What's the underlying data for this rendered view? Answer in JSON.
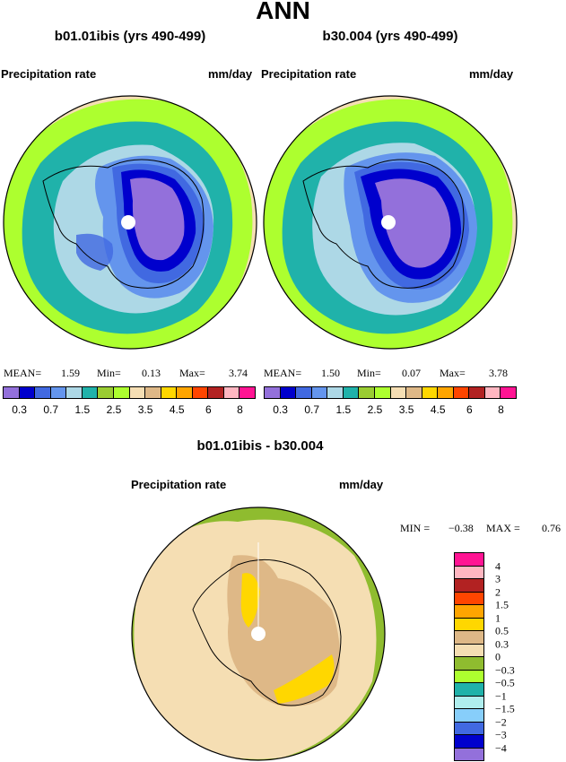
{
  "header": {
    "title": "ANN"
  },
  "panels": [
    {
      "run_label": "b01.01ibis (yrs 490-499)",
      "variable": "Precipitation rate",
      "units": "mm/day",
      "stats": {
        "mean_label": "MEAN=",
        "mean": "1.59",
        "min_label": "Min=",
        "min": "0.13",
        "max_label": "Max=",
        "max": "3.74"
      }
    },
    {
      "run_label": "b30.004 (yrs 490-499)",
      "variable": "Precipitation rate",
      "units": "mm/day",
      "stats": {
        "mean_label": "MEAN=",
        "mean": "1.50",
        "min_label": "Min=",
        "min": "0.07",
        "max_label": "Max=",
        "max": "3.78"
      }
    }
  ],
  "diff_panel": {
    "title": "b01.01ibis - b30.004",
    "variable": "Precipitation rate",
    "units": "mm/day",
    "min_label": "MIN =",
    "min": "−0.38",
    "max_label": "MAX =",
    "max": "0.76"
  },
  "colorbar": {
    "colors": [
      "#9370db",
      "#0000cd",
      "#4169e1",
      "#6495ed",
      "#add8e6",
      "#20b2aa",
      "#9acd32",
      "#adff2f",
      "#f5deb3",
      "#deb887",
      "#ffd700",
      "#ffa500",
      "#ff4500",
      "#b22222",
      "#ffb6c1",
      "#ff1493"
    ],
    "labels": [
      "0.3",
      "0.7",
      "1.5",
      "2.5",
      "3.5",
      "4.5",
      "6",
      "8"
    ]
  },
  "diff_colorbar": {
    "colors": [
      "#ff1493",
      "#ffb6c1",
      "#b22222",
      "#ff4500",
      "#ffa500",
      "#ffd700",
      "#deb887",
      "#f5deb3",
      "#8fbc2f",
      "#adff2f",
      "#20b2aa",
      "#afeeee",
      "#87cefa",
      "#4169e1",
      "#0000cd",
      "#9370db"
    ],
    "labels": [
      "4",
      "3",
      "2",
      "1.5",
      "1",
      "0.5",
      "0.3",
      "0",
      "−0.3",
      "−0.5",
      "−1",
      "−1.5",
      "−2",
      "−3",
      "−4"
    ]
  }
}
